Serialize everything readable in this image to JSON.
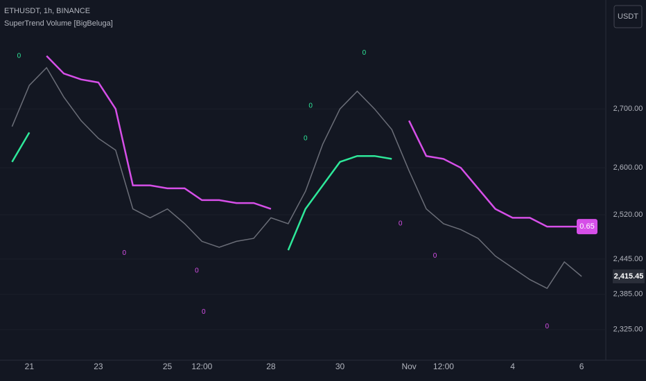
{
  "chart_data": {
    "type": "line",
    "title": "ETHUSDT, 1h, BINANCE",
    "subtitle": "SuperTrend Volume [BigBeluga]",
    "currency": "USDT",
    "categories": [
      null,
      "21",
      null,
      null,
      null,
      "23",
      null,
      null,
      null,
      "25",
      null,
      "12:00",
      null,
      null,
      null,
      "28",
      null,
      null,
      null,
      "30",
      null,
      null,
      null,
      "Nov",
      null,
      "12:00",
      null,
      null,
      null,
      "4",
      null,
      null,
      null,
      "6"
    ],
    "series": [
      {
        "color": "#6b6e78",
        "values": [
          2670,
          2740,
          2770,
          2720,
          2680,
          2650,
          2630,
          2530,
          2515,
          2530,
          2505,
          2475,
          2465,
          2475,
          2480,
          2515,
          2505,
          2560,
          2640,
          2700,
          2730,
          2700,
          2665,
          2595,
          2530,
          2505,
          2495,
          2480,
          2450,
          2430,
          2410,
          2395,
          2440,
          2415.45
        ]
      },
      {
        "color": "#d64fe8",
        "values": [
          null,
          null,
          2790,
          2760,
          2750,
          2745,
          2700,
          2570,
          2570,
          2565,
          2565,
          2545,
          2545,
          2540,
          2540,
          2530,
          null,
          null,
          null,
          null,
          null,
          null,
          null,
          2680,
          2620,
          2615,
          2600,
          2565,
          2530,
          2515,
          2515,
          2500,
          2500,
          2500
        ]
      },
      {
        "color": "#2ee89a",
        "values": [
          2610,
          2660,
          null,
          null,
          null,
          null,
          null,
          null,
          null,
          null,
          null,
          null,
          null,
          null,
          null,
          null,
          2460,
          2530,
          2570,
          2610,
          2620,
          2620,
          2615,
          null,
          null,
          null,
          null,
          null,
          null,
          null,
          null,
          null,
          null,
          null
        ]
      }
    ],
    "signals": [
      {
        "x": 0.4,
        "y": 2790,
        "label": 0,
        "color": "#2ee89a"
      },
      {
        "x": 17,
        "y": 2650,
        "label": 0,
        "color": "#2ee89a"
      },
      {
        "x": 17.3,
        "y": 2705,
        "label": 0,
        "color": "#2ee89a"
      },
      {
        "x": 20.4,
        "y": 2795,
        "label": 0,
        "color": "#2ee89a"
      },
      {
        "x": 6.5,
        "y": 2455,
        "label": 0,
        "color": "#d64fe8"
      },
      {
        "x": 10.7,
        "y": 2425,
        "label": 0,
        "color": "#d64fe8"
      },
      {
        "x": 11.1,
        "y": 2355,
        "label": 0,
        "color": "#d64fe8"
      },
      {
        "x": 22.5,
        "y": 2505,
        "label": 0,
        "color": "#d64fe8"
      },
      {
        "x": 24.5,
        "y": 2450,
        "label": 0,
        "color": "#d64fe8"
      },
      {
        "x": 31,
        "y": 2330,
        "label": 0,
        "color": "#d64fe8"
      }
    ],
    "supertrend_value": 0.65,
    "last_price": {
      "value": 2415.45,
      "label": "2,415.45"
    },
    "ylim": [
      2273,
      2885
    ],
    "yticks": [
      {
        "value": 2325,
        "label": "2,325.00"
      },
      {
        "value": 2385,
        "label": "2,385.00"
      },
      {
        "value": 2445,
        "label": "2,445.00"
      },
      {
        "value": 2520,
        "label": "2,520.00"
      },
      {
        "value": 2600,
        "label": "2,600.00"
      },
      {
        "value": 2700,
        "label": "2,700.00"
      }
    ]
  }
}
